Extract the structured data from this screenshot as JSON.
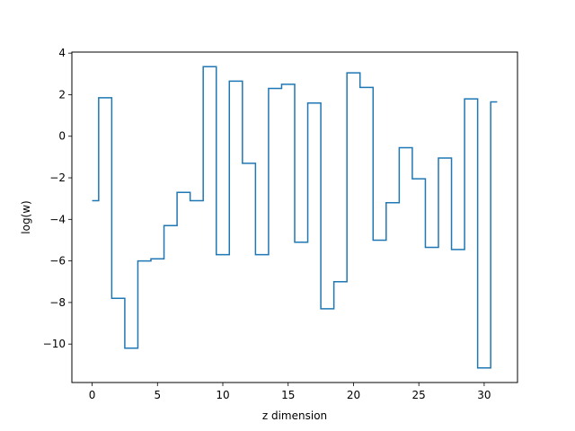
{
  "chart_data": {
    "type": "line",
    "style": "step-mid",
    "title": "",
    "xlabel": "z dimension",
    "ylabel": "log(w)",
    "xlim": [
      -1.55,
      32.55
    ],
    "ylim": [
      -11.85,
      4.05
    ],
    "xticks": [
      0,
      5,
      10,
      15,
      20,
      25,
      30
    ],
    "yticks": [
      -10,
      -8,
      -6,
      -4,
      -2,
      0,
      2,
      4
    ],
    "ytick_labels": [
      "−10",
      "−8",
      "−6",
      "−4",
      "−2",
      "0",
      "2",
      "4"
    ],
    "grid": false,
    "legend": "none",
    "line_color": "#1f77b4",
    "series": [
      {
        "x": [
          0,
          1,
          2,
          3,
          4,
          5,
          6,
          7,
          8,
          9,
          10,
          11,
          12,
          13,
          14,
          15,
          16,
          17,
          18,
          19,
          20,
          21,
          22,
          23,
          24,
          25,
          26,
          27,
          28,
          29,
          30,
          31
        ],
        "values": [
          -3.1,
          1.85,
          -7.8,
          -10.2,
          -6.0,
          -5.9,
          -4.3,
          -2.7,
          -3.1,
          3.35,
          -5.7,
          2.65,
          -1.3,
          -5.7,
          2.3,
          2.5,
          -5.1,
          1.6,
          -8.3,
          -7.0,
          3.05,
          2.35,
          -5.0,
          -3.2,
          -0.55,
          -2.05,
          -5.35,
          -1.05,
          -5.45,
          1.8,
          -11.15,
          1.65
        ]
      }
    ]
  }
}
